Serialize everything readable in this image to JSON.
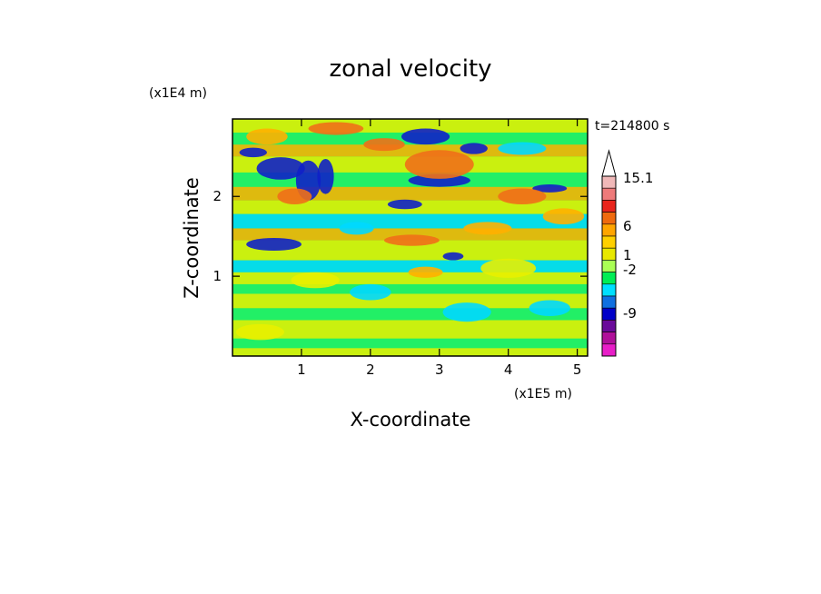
{
  "chart_data": {
    "type": "heatmap",
    "title": "zonal velocity",
    "xlabel": "X-coordinate",
    "ylabel": "Z-coordinate",
    "x_scale_label": "(x1E5 m)",
    "y_scale_label": "(x1E4 m)",
    "time_label": "t=214800 s",
    "x_ticks": [
      "1",
      "2",
      "3",
      "4",
      "5"
    ],
    "y_ticks": [
      "1",
      "2"
    ],
    "xlim": [
      0,
      5.15
    ],
    "ylim": [
      0,
      2.97
    ],
    "colorbar": {
      "labels": [
        "15.1",
        "6",
        "1",
        "-2",
        "-9"
      ],
      "extend": "max",
      "levels": [
        "#f0b8b8",
        "#ee7a7a",
        "#e8241c",
        "#ef6a0e",
        "#ffa500",
        "#ffd000",
        "#e8e800",
        "#aaff55",
        "#00ee55",
        "#00e0ff",
        "#1070e0",
        "#0000c8",
        "#6a0a9a",
        "#b0109a",
        "#e81ec8"
      ]
    },
    "palette": {
      "strong_neg": "#1020c8",
      "neg": "#00d8ff",
      "weak": "#22ee66",
      "zero": "#e8f000",
      "pos": "#ffb000",
      "strong_pos": "#f07018"
    }
  }
}
